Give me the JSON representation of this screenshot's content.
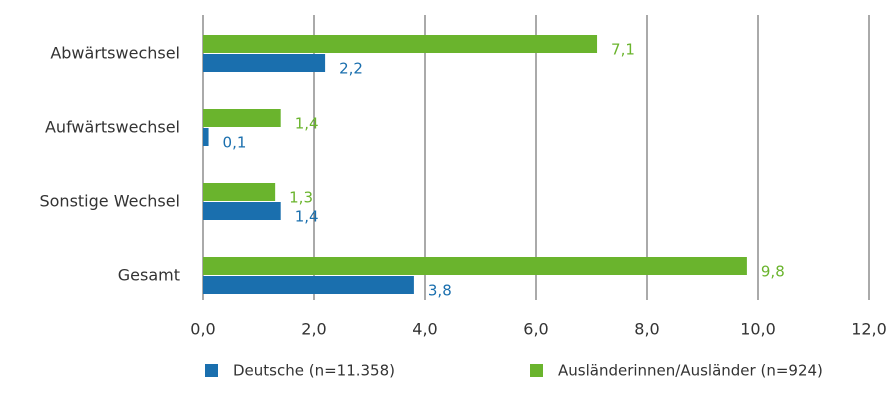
{
  "chart_data": {
    "type": "hbar",
    "categories": [
      "Abwärtswechsel",
      "Aufwärtswechsel",
      "Sonstige Wechsel",
      "Gesamt"
    ],
    "series": [
      {
        "name": "Deutsche (n=11.358)",
        "color": "#1a6fae",
        "values": [
          2.2,
          0.1,
          1.4,
          3.8
        ],
        "value_labels": [
          "2,2",
          "0,1",
          "1,4",
          "3,8"
        ]
      },
      {
        "name": "Ausländerinnen/Ausländer (n=924)",
        "color": "#6ab42d",
        "values": [
          7.1,
          1.4,
          1.3,
          9.8
        ],
        "value_labels": [
          "7,1",
          "1,4",
          "1,3",
          "9,8"
        ]
      }
    ],
    "xlim": [
      0,
      12
    ],
    "xticks": [
      {
        "value": 0,
        "label": "0,0"
      },
      {
        "value": 2,
        "label": "2,0"
      },
      {
        "value": 4,
        "label": "4,0"
      },
      {
        "value": 6,
        "label": "6,0"
      },
      {
        "value": 8,
        "label": "8,0"
      },
      {
        "value": 10,
        "label": "10,0"
      },
      {
        "value": 12,
        "label": "12,0"
      }
    ],
    "grid": true,
    "legend": "bottom"
  }
}
